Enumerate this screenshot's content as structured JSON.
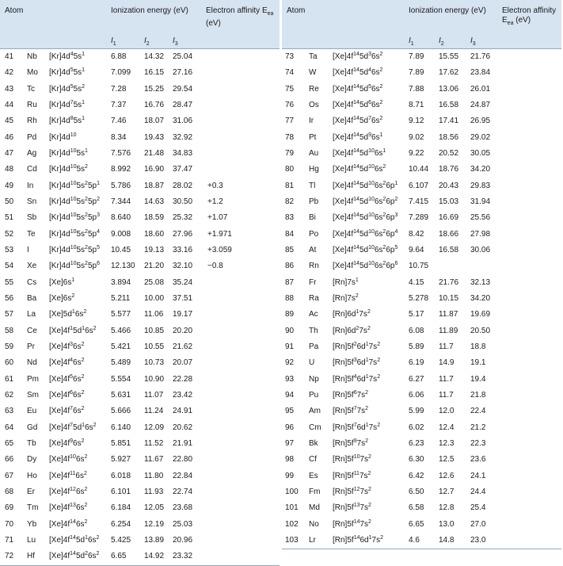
{
  "headers": {
    "atom": "Atom",
    "ionization": "Ionization energy (eV)",
    "affinity": "Electron affinity E",
    "affinity_sub": "ea",
    "affinity_unit": "(eV)",
    "i1": "I",
    "i1_sub": "1",
    "i2": "I",
    "i2_sub": "2",
    "i3": "I",
    "i3_sub": "3"
  },
  "left_rows": [
    [
      "41",
      "Nb",
      "[Kr]4d^4^5s^1",
      "6.88",
      "14.32",
      "25.04",
      ""
    ],
    [
      "42",
      "Mo",
      "[Kr]4d^5^5s^1",
      "7.099",
      "16.15",
      "27.16",
      ""
    ],
    [
      "43",
      "Tc",
      "[Kr]4d^5^5s^2",
      "7.28",
      "15.25",
      "29.54",
      ""
    ],
    [
      "44",
      "Ru",
      "[Kr]4d^7^5s^1",
      "7.37",
      "16.76",
      "28.47",
      ""
    ],
    [
      "45",
      "Rh",
      "[Kr]4d^8^5s^1",
      "7.46",
      "18.07",
      "31.06",
      ""
    ],
    [
      "46",
      "Pd",
      "[Kr]4d^10",
      "8.34",
      "19.43",
      "32.92",
      ""
    ],
    [
      "47",
      "Ag",
      "[Kr]4d^10^5s^1",
      "7.576",
      "21.48",
      "34.83",
      ""
    ],
    [
      "48",
      "Cd",
      "[Kr]4d^10^5s^2",
      "8.992",
      "16.90",
      "37.47",
      ""
    ],
    [
      "49",
      "In",
      "[Kr]4d^10^5s^2^5p^1",
      "5.786",
      "18.87",
      "28.02",
      "+0.3"
    ],
    [
      "50",
      "Sn",
      "[Kr]4d^10^5s^2^5p^2",
      "7.344",
      "14.63",
      "30.50",
      "+1.2"
    ],
    [
      "51",
      "Sb",
      "[Kr]4d^10^5s^2^5p^3",
      "8.640",
      "18.59",
      "25.32",
      "+1.07"
    ],
    [
      "52",
      "Te",
      "[Kr]4d^10^5s^2^5p^4",
      "9.008",
      "18.60",
      "27.96",
      "+1.971"
    ],
    [
      "53",
      "I",
      "[Kr]4d^10^5s^2^5p^5",
      "10.45",
      "19.13",
      "33.16",
      "+3.059"
    ],
    [
      "54",
      "Xe",
      "[Kr]4d^10^5s^2^5p^6",
      "12.130",
      "21.20",
      "32.10",
      "−0.8"
    ],
    [
      "55",
      "Cs",
      "[Xe]6s^1",
      "3.894",
      "25.08",
      "35.24",
      ""
    ],
    [
      "56",
      "Ba",
      "[Xe]6s^2",
      "5.211",
      "10.00",
      "37.51",
      ""
    ],
    [
      "57",
      "La",
      "[Xe]5d^1^6s^2",
      "5.577",
      "11.06",
      "19.17",
      ""
    ],
    [
      "58",
      "Ce",
      "[Xe]4f^1^5d^1^6s^2",
      "5.466",
      "10.85",
      "20.20",
      ""
    ],
    [
      "59",
      "Pr",
      "[Xe]4f^3^6s^2",
      "5.421",
      "10.55",
      "21.62",
      ""
    ],
    [
      "60",
      "Nd",
      "[Xe]4f^4^6s^2",
      "5.489",
      "10.73",
      "20.07",
      ""
    ],
    [
      "61",
      "Pm",
      "[Xe]4f^5^6s^2",
      "5.554",
      "10.90",
      "22.28",
      ""
    ],
    [
      "62",
      "Sm",
      "[Xe]4f^6^6s^2",
      "5.631",
      "11.07",
      "23.42",
      ""
    ],
    [
      "63",
      "Eu",
      "[Xe]4f^7^6s^2",
      "5.666",
      "11.24",
      "24.91",
      ""
    ],
    [
      "64",
      "Gd",
      "[Xe]4f^7^5d^1^6s^2",
      "6.140",
      "12.09",
      "20.62",
      ""
    ],
    [
      "65",
      "Tb",
      "[Xe]4f^9^6s^2",
      "5.851",
      "11.52",
      "21.91",
      ""
    ],
    [
      "66",
      "Dy",
      "[Xe]4f^10^6s^2",
      "5.927",
      "11.67",
      "22.80",
      ""
    ],
    [
      "67",
      "Ho",
      "[Xe]4f^11^6s^2",
      "6.018",
      "11.80",
      "22.84",
      ""
    ],
    [
      "68",
      "Er",
      "[Xe]4f^12^6s^2",
      "6.101",
      "11.93",
      "22.74",
      ""
    ],
    [
      "69",
      "Tm",
      "[Xe]4f^13^6s^2",
      "6.184",
      "12.05",
      "23.68",
      ""
    ],
    [
      "70",
      "Yb",
      "[Xe]4f^14^6s^2",
      "6.254",
      "12.19",
      "25.03",
      ""
    ],
    [
      "71",
      "Lu",
      "[Xe]4f^14^5d^1^6s^2",
      "5.425",
      "13.89",
      "20.96",
      ""
    ],
    [
      "72",
      "Hf",
      "[Xe]4f^14^5d^2^6s^2",
      "6.65",
      "14.92",
      "23.32",
      ""
    ]
  ],
  "right_rows": [
    [
      "73",
      "Ta",
      "[Xe]4f^14^5d^3^6s^2",
      "7.89",
      "15.55",
      "21.76",
      ""
    ],
    [
      "74",
      "W",
      "[Xe]4f^14^5d^4^6s^2",
      "7.89",
      "17.62",
      "23.84",
      ""
    ],
    [
      "75",
      "Re",
      "[Xe]4f^14^5d^5^6s^2",
      "7.88",
      "13.06",
      "26.01",
      ""
    ],
    [
      "76",
      "Os",
      "[Xe]4f^14^5d^6^6s^2",
      "8.71",
      "16.58",
      "24.87",
      ""
    ],
    [
      "77",
      "Ir",
      "[Xe]4f^14^5d^7^6s^2",
      "9.12",
      "17.41",
      "26.95",
      ""
    ],
    [
      "78",
      "Pt",
      "[Xe]4f^14^5d^9^6s^1",
      "9.02",
      "18.56",
      "29.02",
      ""
    ],
    [
      "79",
      "Au",
      "[Xe]4f^14^5d^10^6s^1",
      "9.22",
      "20.52",
      "30.05",
      ""
    ],
    [
      "80",
      "Hg",
      "[Xe]4f^14^5d^10^6s^2",
      "10.44",
      "18.76",
      "34.20",
      ""
    ],
    [
      "81",
      "Tl",
      "[Xe]4f^14^5d^10^6s^2^6p^1",
      "6.107",
      "20.43",
      "29.83",
      ""
    ],
    [
      "82",
      "Pb",
      "[Xe]4f^14^5d^10^6s^2^6p^2",
      "7.415",
      "15.03",
      "31.94",
      ""
    ],
    [
      "83",
      "Bi",
      "[Xe]4f^14^5d^10^6s^2^6p^3",
      "7.289",
      "16.69",
      "25.56",
      ""
    ],
    [
      "84",
      "Po",
      "[Xe]4f^14^5d^10^6s^2^6p^4",
      "8.42",
      "18.66",
      "27.98",
      ""
    ],
    [
      "85",
      "At",
      "[Xe]4f^14^5d^10^6s^2^6p^5",
      "9.64",
      "16.58",
      "30.06",
      ""
    ],
    [
      "86",
      "Rn",
      "[Xe]4f^14^5d^10^6s^2^6p^6",
      "10.75",
      "",
      "",
      ""
    ],
    [
      "87",
      "Fr",
      "[Rn]7s^1",
      "4.15",
      "21.76",
      "32.13",
      ""
    ],
    [
      "88",
      "Ra",
      "[Rn]7s^2",
      "5.278",
      "10.15",
      "34.20",
      ""
    ],
    [
      "89",
      "Ac",
      "[Rn]6d^1^7s^2",
      "5.17",
      "11.87",
      "19.69",
      ""
    ],
    [
      "90",
      "Th",
      "[Rn]6d^2^7s^2",
      "6.08",
      "11.89",
      "20.50",
      ""
    ],
    [
      "91",
      "Pa",
      "[Rn]5f^2^6d^1^7s^2",
      "5.89",
      "11.7",
      "18.8",
      ""
    ],
    [
      "92",
      "U",
      "[Rn]5f^3^6d^1^7s^2",
      "6.19",
      "14.9",
      "19.1",
      ""
    ],
    [
      "93",
      "Np",
      "[Rn]5f^4^6d^1^7s^2",
      "6.27",
      "11.7",
      "19.4",
      ""
    ],
    [
      "94",
      "Pu",
      "[Rn]5f^6^7s^2",
      "6.06",
      "11.7",
      "21.8",
      ""
    ],
    [
      "95",
      "Am",
      "[Rn]5f^7^7s^2",
      "5.99",
      "12.0",
      "22.4",
      ""
    ],
    [
      "96",
      "Cm",
      "[Rn]5f^7^6d^1^7s^2",
      "6.02",
      "12.4",
      "21.2",
      ""
    ],
    [
      "97",
      "Bk",
      "[Rn]5f^9^7s^2",
      "6.23",
      "12.3",
      "22.3",
      ""
    ],
    [
      "98",
      "Cf",
      "[Rn]5f^10^7s^2",
      "6.30",
      "12.5",
      "23.6",
      ""
    ],
    [
      "99",
      "Es",
      "[Rn]5f^11^7s^2",
      "6.42",
      "12.6",
      "24.1",
      ""
    ],
    [
      "100",
      "Fm",
      "[Rn]5f^12^7s^2",
      "6.50",
      "12.7",
      "24.4",
      ""
    ],
    [
      "101",
      "Md",
      "[Rn]5f^13^7s^2",
      "6.58",
      "12.8",
      "25.4",
      ""
    ],
    [
      "102",
      "No",
      "[Rn]5f^14^7s^2",
      "6.65",
      "13.0",
      "27.0",
      ""
    ],
    [
      "103",
      "Lr",
      "[Rn]5f^14^6d^1^7s^2",
      "4.6",
      "14.8",
      "23.0",
      ""
    ]
  ]
}
